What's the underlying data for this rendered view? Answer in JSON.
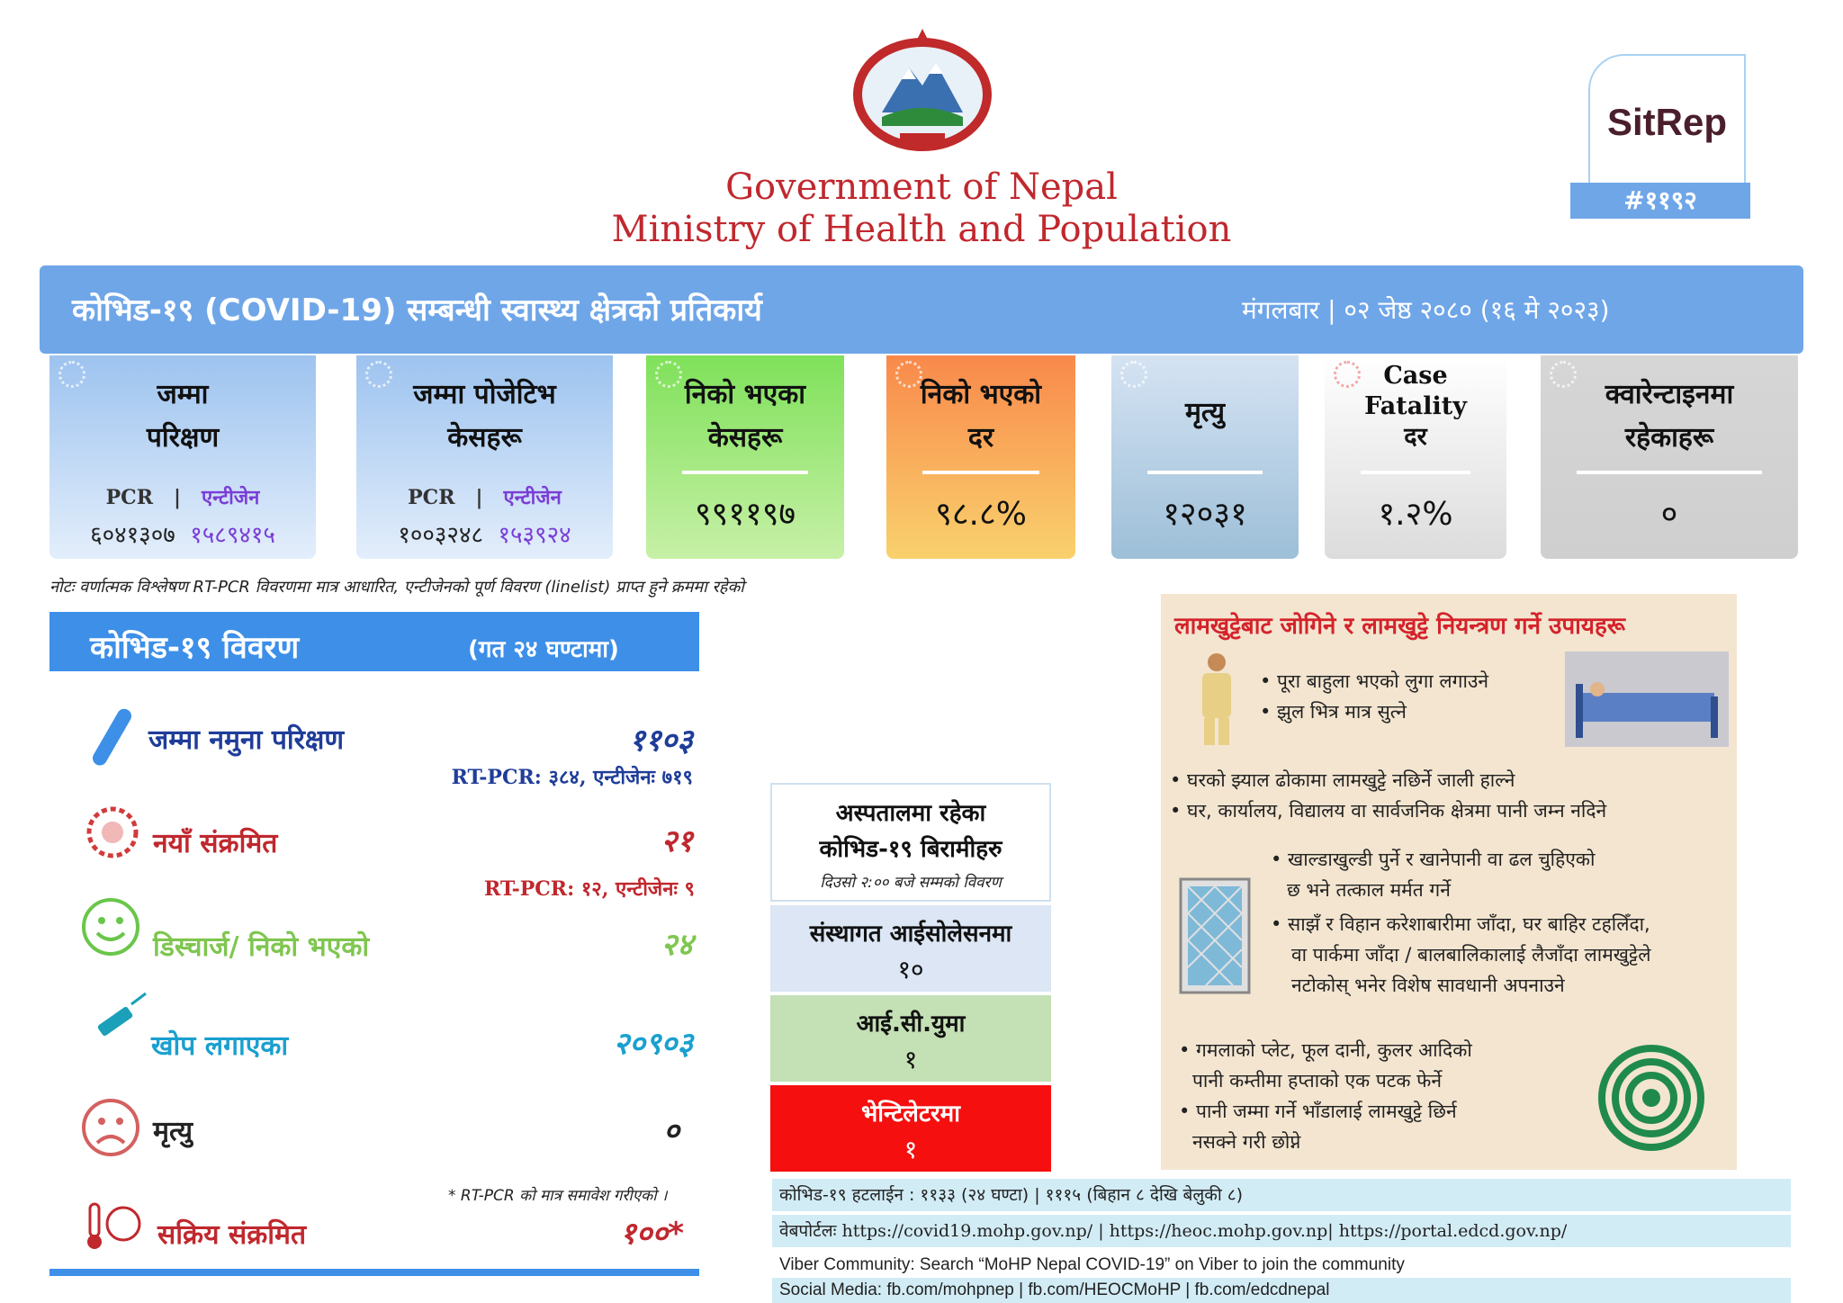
{
  "header": {
    "gov_title": "Government of Nepal",
    "ministry_title": "Ministry of Health and Population",
    "sitrep_label": "SitRep",
    "sitrep_number": "#११९२"
  },
  "banner": {
    "title": "कोभिड-१९ (COVID-19) सम्बन्धी स्वास्थ्य क्षेत्रको प्रतिकार्य",
    "date": "मंगलबार | ०२ जेष्ठ २०८० (१६ मे २०२३)"
  },
  "cards": {
    "total_tests": {
      "label_1": "जम्मा",
      "label_2": "परिक्षण",
      "pcr_label": "PCR",
      "antigen_label": "एन्टीजेन",
      "pcr_value": "६०४१३०७",
      "antigen_value": "१५८९४१५"
    },
    "total_positive": {
      "label_1": "जम्मा पोजेटिभ",
      "label_2": "केसहरू",
      "pcr_label": "PCR",
      "antigen_label": "एन्टीजेन",
      "pcr_value": "१००३२४८",
      "antigen_value": "१५३९२४"
    },
    "recovered": {
      "label_1": "निको भएका",
      "label_2": "केसहरू",
      "value": "९९११९७"
    },
    "recovery_rate": {
      "label_1": "निको भएको",
      "label_2": "दर",
      "value": "९८.८%"
    },
    "deaths": {
      "label_1": "मृत्यु",
      "value": "१२०३१"
    },
    "cfr": {
      "label_1": "Case",
      "label_2": "Fatality",
      "label_3": "दर",
      "value": "१.२%"
    },
    "quarantine": {
      "label_1": "क्वारेन्टाइनमा",
      "label_2": "रहेकाहरू",
      "value": "०"
    }
  },
  "note": "नोटः वर्णात्मक विश्लेषण RT-PCR विवरणमा मात्र आधारित, एन्टीजेनको पूर्ण विवरण (linelist) प्राप्त हुने क्रममा रहेको",
  "details": {
    "title": "कोभिड-१९ विवरण",
    "subtitle": "(गत २४ घण्टामा)",
    "samples_label": "जम्मा नमुना परिक्षण",
    "samples_value": "११०३",
    "samples_sub": "RT-PCR: ३८४, एन्टीजेनः ७१९",
    "new_label": "नयाँ संक्रमित",
    "new_value": "२१",
    "new_sub": "RT-PCR: १२, एन्टीजेनः ९",
    "discharge_label": "डिस्चार्ज/ निको भएको",
    "discharge_value": "२४",
    "vaccine_label": "खोप लगाएका",
    "vaccine_value": "२०९०३",
    "death_label": "मृत्यु",
    "death_value": "०",
    "footnote": "* RT-PCR को मात्र समावेश गरीएको ।",
    "active_label": "सक्रिय संक्रमित",
    "active_value": "१००*"
  },
  "hospital": {
    "title_1": "अस्पतालमा रहेका",
    "title_2": "कोभिड-१९ बिरामीहरु",
    "subtitle": "दिउसो २:०० बजे सम्मको विवरण",
    "isolation_label": "संस्थागत आईसोलेसनमा",
    "isolation_value": "१०",
    "icu_label": "आई.सी.युमा",
    "icu_value": "१",
    "ventilator_label": "भेन्टिलेटरमा",
    "ventilator_value": "१"
  },
  "mosquito": {
    "title": "लामखुट्टेबाट जोगिने र लामखुट्टे नियन्त्रण गर्ने उपायहरू",
    "tip_1": "• पूरा बाहुला भएको लुगा लगाउने",
    "tip_2": "• झुल भित्र मात्र सुत्ने",
    "tip_3": "• घरको झ्याल ढोकामा लामखुट्टे नछिर्ने जाली हाल्ने",
    "tip_4": "• घर, कार्यालय, विद्यालय वा सार्वजनिक क्षेत्रमा पानी जम्न नदिने",
    "tip_5a": "• खाल्डाखुल्डी पुर्ने र खानेपानी वा ढल चुहिएको",
    "tip_5b": "छ भने तत्काल मर्मत गर्ने",
    "tip_6a": "• साझँ र विहान करेशाबारीमा जाँदा, घर बाहिर टहलिँदा,",
    "tip_6b": "वा पार्कमा जाँदा / बालबालिकालाई लैजाँदा लामखुट्टेले",
    "tip_6c": "नटोकोस् भनेर विशेष सावधानी अपनाउने",
    "tip_7a": "• गमलाको प्लेट, फूल दानी, कुलर आदिको",
    "tip_7b": "पानी कम्तीमा हप्ताको एक पटक फेर्ने",
    "tip_8a": "• पानी जम्मा गर्ने भाँडालाई लामखुट्टे छिर्न",
    "tip_8b": "नसक्ने गरी छोप्ने"
  },
  "footer": {
    "hotline": "कोभिड-१९ हटलाईन : ११३३ (२४ घण्टा) | १११५ (बिहान ८ देखि बेलुकी ८)",
    "web": "वेबपोर्टलः  https://covid19.mohp.gov.np/  |  https://heoc.mohp.gov.np|  https://portal.edcd.gov.np/",
    "viber": "Viber Community: Search “MoHP Nepal COVID-19” on Viber to join the community",
    "social": "Social Media: fb.com/mohpnep | fb.com/HEOCMoHP  |  fb.com/edcdnepal"
  },
  "colors": {
    "banner_blue": "#6fa6e8",
    "section_blue": "#3d8fe8",
    "gov_red": "#c0282e",
    "ventilator_red": "#f50f0f"
  },
  "icons": [
    "nepal-emblem",
    "test-tube-icon",
    "virus-icon",
    "smiley-icon",
    "syringe-icon",
    "sad-face-icon",
    "thermometer-icon",
    "bed-icon",
    "window-net-icon",
    "mosquito-coil-icon"
  ]
}
